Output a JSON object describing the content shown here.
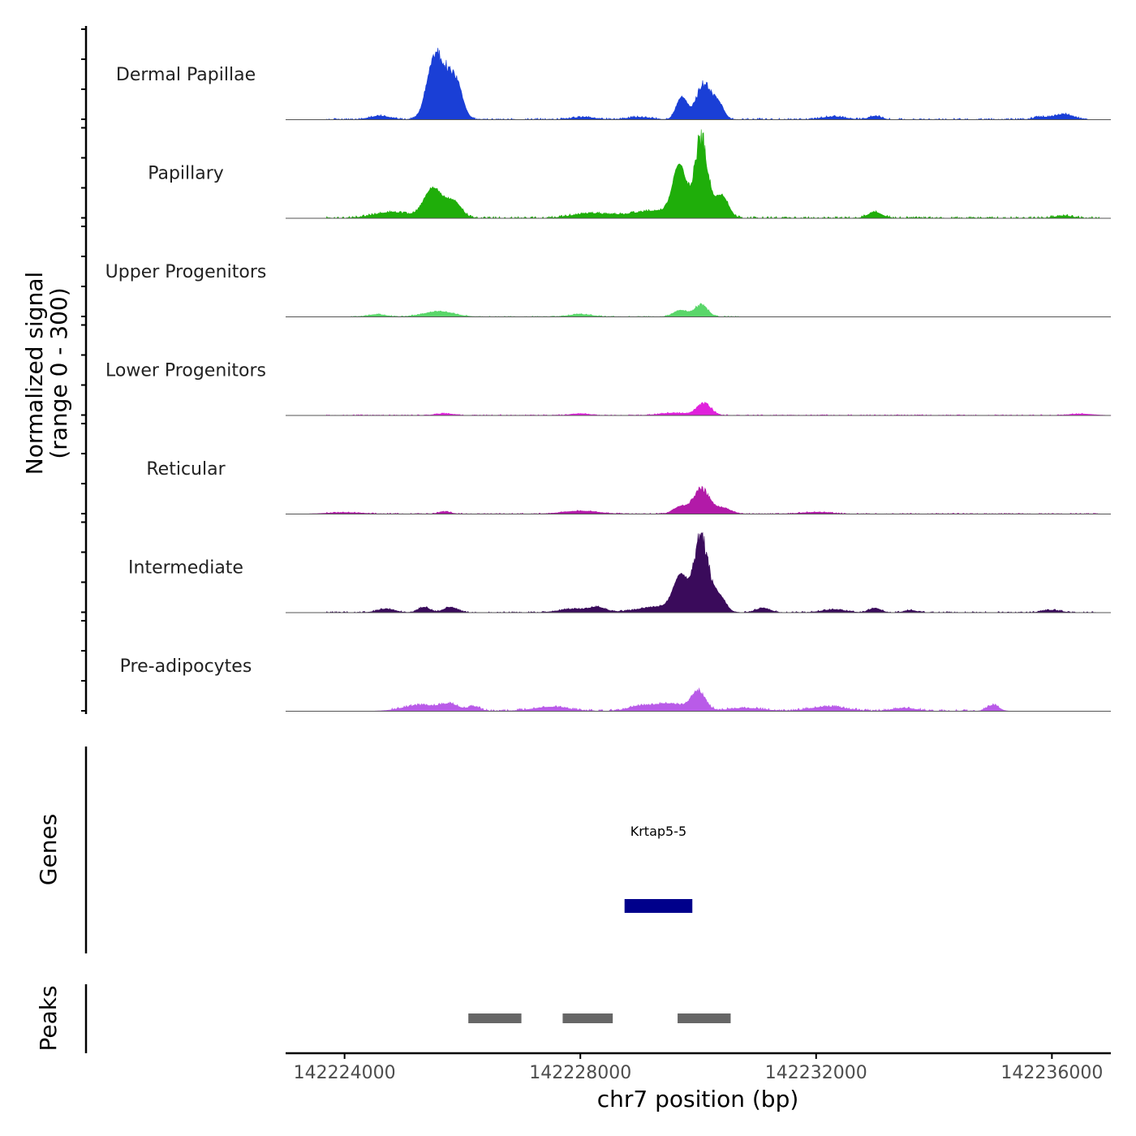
{
  "chart_data": {
    "type": "area",
    "y_axis_title": [
      "Normalized signal",
      "(range 0 - 300)"
    ],
    "y_range": [
      0,
      300
    ],
    "x_axis_title": "chr7 position (bp)",
    "x_range": [
      142223000,
      142237000
    ],
    "x_ticks": [
      142224000,
      142228000,
      142232000,
      142236000
    ],
    "x_tick_labels": [
      "142224000",
      "142228000",
      "142232000",
      "142236000"
    ],
    "tracks": [
      {
        "name": "Dermal Papillae",
        "color": "#1a3fd6",
        "peaks": [
          {
            "pos": 142225650,
            "height": 170,
            "width": 170,
            "noisy": true
          },
          {
            "pos": 142225500,
            "height": 110,
            "width": 120
          },
          {
            "pos": 142225900,
            "height": 90,
            "width": 110
          },
          {
            "pos": 142230100,
            "height": 140,
            "width": 130,
            "noisy": true
          },
          {
            "pos": 142229720,
            "height": 75,
            "width": 90
          },
          {
            "pos": 142230350,
            "height": 45,
            "width": 90
          },
          {
            "pos": 142224600,
            "height": 12,
            "width": 180
          },
          {
            "pos": 142228050,
            "height": 8,
            "width": 200
          },
          {
            "pos": 142229000,
            "height": 8,
            "width": 200
          },
          {
            "pos": 142232300,
            "height": 10,
            "width": 200
          },
          {
            "pos": 142233000,
            "height": 12,
            "width": 100
          },
          {
            "pos": 142235800,
            "height": 8,
            "width": 120
          },
          {
            "pos": 142236200,
            "height": 18,
            "width": 160
          }
        ],
        "noise": {
          "start": 142223700,
          "end": 142236600,
          "amp": 5
        }
      },
      {
        "name": "Papillary",
        "color": "#1fae0a",
        "peaks": [
          {
            "pos": 142230050,
            "height": 300,
            "width": 110,
            "noisy": true
          },
          {
            "pos": 142229680,
            "height": 165,
            "width": 110
          },
          {
            "pos": 142230400,
            "height": 75,
            "width": 110
          },
          {
            "pos": 142225500,
            "height": 100,
            "width": 150
          },
          {
            "pos": 142225850,
            "height": 55,
            "width": 130
          },
          {
            "pos": 142229300,
            "height": 25,
            "width": 450
          },
          {
            "pos": 142224800,
            "height": 20,
            "width": 300
          },
          {
            "pos": 142228150,
            "height": 15,
            "width": 300
          },
          {
            "pos": 142233000,
            "height": 20,
            "width": 120
          },
          {
            "pos": 142236200,
            "height": 8,
            "width": 150
          }
        ],
        "noise": {
          "start": 142223700,
          "end": 142236800,
          "amp": 6
        }
      },
      {
        "name": "Upper Progenitors",
        "color": "#5ad66a",
        "peaks": [
          {
            "pos": 142230050,
            "height": 45,
            "width": 110,
            "noisy": true
          },
          {
            "pos": 142229700,
            "height": 22,
            "width": 120
          },
          {
            "pos": 142225600,
            "height": 18,
            "width": 250
          },
          {
            "pos": 142224550,
            "height": 8,
            "width": 150
          },
          {
            "pos": 142228000,
            "height": 8,
            "width": 200
          }
        ],
        "noise": {
          "start": 142224100,
          "end": 142230700,
          "amp": 3
        }
      },
      {
        "name": "Lower Progenitors",
        "color": "#e021dc",
        "peaks": [
          {
            "pos": 142230100,
            "height": 45,
            "width": 120,
            "noisy": true
          },
          {
            "pos": 142229600,
            "height": 8,
            "width": 250
          },
          {
            "pos": 142225700,
            "height": 6,
            "width": 150
          },
          {
            "pos": 142228000,
            "height": 6,
            "width": 150
          },
          {
            "pos": 142236500,
            "height": 5,
            "width": 200
          }
        ],
        "noise": {
          "start": 142223700,
          "end": 142236600,
          "amp": 3
        }
      },
      {
        "name": "Reticular",
        "color": "#b21aa8",
        "peaks": [
          {
            "pos": 142230050,
            "height": 95,
            "width": 130,
            "noisy": true
          },
          {
            "pos": 142229700,
            "height": 25,
            "width": 120
          },
          {
            "pos": 142230400,
            "height": 20,
            "width": 150
          },
          {
            "pos": 142228000,
            "height": 10,
            "width": 300
          },
          {
            "pos": 142225700,
            "height": 8,
            "width": 100
          },
          {
            "pos": 142224000,
            "height": 5,
            "width": 300
          },
          {
            "pos": 142232000,
            "height": 6,
            "width": 250
          }
        ],
        "noise": {
          "start": 142223700,
          "end": 142236800,
          "amp": 3
        }
      },
      {
        "name": "Intermediate",
        "color": "#3a0b5b",
        "peaks": [
          {
            "pos": 142230050,
            "height": 280,
            "width": 120,
            "noisy": true
          },
          {
            "pos": 142229700,
            "height": 110,
            "width": 120
          },
          {
            "pos": 142230350,
            "height": 55,
            "width": 110
          },
          {
            "pos": 142229400,
            "height": 20,
            "width": 400
          },
          {
            "pos": 142225350,
            "height": 18,
            "width": 100
          },
          {
            "pos": 142225800,
            "height": 18,
            "width": 120
          },
          {
            "pos": 142224700,
            "height": 12,
            "width": 150
          },
          {
            "pos": 142227900,
            "height": 12,
            "width": 250
          },
          {
            "pos": 142228300,
            "height": 15,
            "width": 130
          },
          {
            "pos": 142231100,
            "height": 15,
            "width": 120
          },
          {
            "pos": 142232300,
            "height": 10,
            "width": 200
          },
          {
            "pos": 142233000,
            "height": 15,
            "width": 100
          },
          {
            "pos": 142233600,
            "height": 8,
            "width": 100
          },
          {
            "pos": 142236000,
            "height": 8,
            "width": 150
          }
        ],
        "noise": {
          "start": 142223700,
          "end": 142236800,
          "amp": 4
        }
      },
      {
        "name": "Pre-adipocytes",
        "color": "#b95be8",
        "peaks": [
          {
            "pos": 142230000,
            "height": 75,
            "width": 120,
            "noisy": true
          },
          {
            "pos": 142229500,
            "height": 25,
            "width": 250
          },
          {
            "pos": 142225300,
            "height": 20,
            "width": 300
          },
          {
            "pos": 142225800,
            "height": 20,
            "width": 150
          },
          {
            "pos": 142226200,
            "height": 15,
            "width": 100
          },
          {
            "pos": 142227500,
            "height": 14,
            "width": 300
          },
          {
            "pos": 142229000,
            "height": 15,
            "width": 200
          },
          {
            "pos": 142230800,
            "height": 10,
            "width": 300
          },
          {
            "pos": 142232200,
            "height": 15,
            "width": 300
          },
          {
            "pos": 142233500,
            "height": 10,
            "width": 200
          },
          {
            "pos": 142235000,
            "height": 20,
            "width": 100
          }
        ],
        "noise": {
          "start": 142224800,
          "end": 142235100,
          "amp": 6
        }
      }
    ],
    "genes_label": "Genes",
    "genes": [
      {
        "name": "Krtap5-5",
        "start": 142228750,
        "end": 142229900,
        "color": "#00008b"
      }
    ],
    "peaks_label": "Peaks",
    "peaks": [
      {
        "start": 142226100,
        "end": 142227000
      },
      {
        "start": 142227700,
        "end": 142228550
      },
      {
        "start": 142229650,
        "end": 142230550
      }
    ]
  }
}
